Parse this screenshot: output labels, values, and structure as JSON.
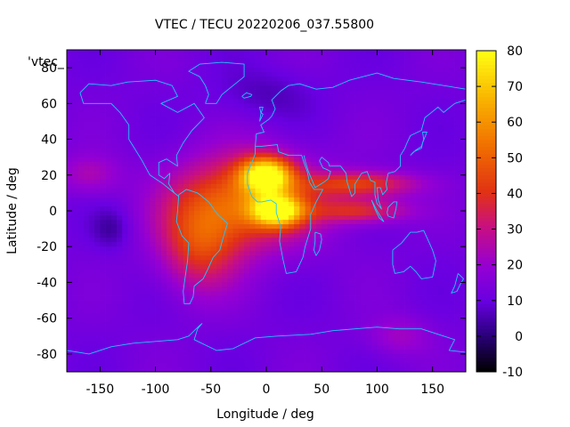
{
  "chart_data": {
    "type": "heatmap",
    "title": "VTEC / TECU 20220206_037.55800",
    "xlabel": "Longitude / deg",
    "ylabel": "Latitude / deg",
    "xlim": [
      -180,
      180
    ],
    "ylim": [
      -90,
      90
    ],
    "x_ticks": [
      -150,
      -100,
      -50,
      0,
      50,
      100,
      150
    ],
    "y_ticks": [
      -80,
      -60,
      -40,
      -20,
      0,
      20,
      40,
      60,
      80
    ],
    "colorbar": {
      "min": -10,
      "max": 80,
      "ticks": [
        -10,
        0,
        10,
        20,
        30,
        40,
        50,
        60,
        70,
        80
      ]
    },
    "series_label": "'vtec_",
    "background_level": 12,
    "features": [
      {
        "lon": 0,
        "lat": 20,
        "value": 72,
        "sx": 16,
        "sy": 7
      },
      {
        "lon": 10,
        "lat": 0,
        "value": 68,
        "sx": 16,
        "sy": 6
      },
      {
        "lon": -20,
        "lat": 5,
        "value": 50,
        "sx": 45,
        "sy": 18
      },
      {
        "lon": -60,
        "lat": -20,
        "value": 38,
        "sx": 25,
        "sy": 18
      },
      {
        "lon": 85,
        "lat": 15,
        "value": 42,
        "sx": 35,
        "sy": 5
      },
      {
        "lon": 85,
        "lat": 0,
        "value": 38,
        "sx": 30,
        "sy": 5
      },
      {
        "lon": -160,
        "lat": 20,
        "value": 24,
        "sx": 20,
        "sy": 8
      },
      {
        "lon": -140,
        "lat": -10,
        "value": 4,
        "sx": 12,
        "sy": 8
      },
      {
        "lon": 120,
        "lat": -70,
        "value": 22,
        "sx": 20,
        "sy": 8
      },
      {
        "lon": 0,
        "lat": 65,
        "value": 6,
        "sx": 30,
        "sy": 10
      }
    ]
  }
}
